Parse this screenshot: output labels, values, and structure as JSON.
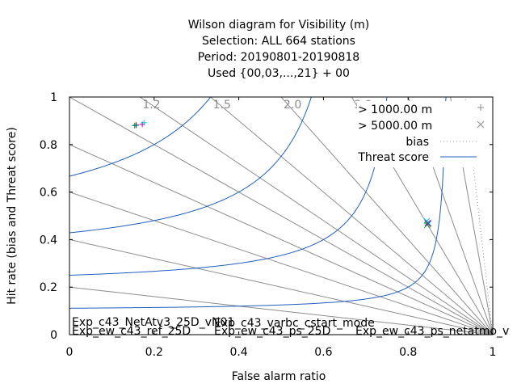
{
  "chart_data": {
    "type": "scatter",
    "title_lines": [
      "Wilson diagram  for Visibility (m)",
      "Selection: ALL    664 stations",
      "Period: 20190801-20190818",
      "Used {00,03,...,21} + 00"
    ],
    "xlabel": "False alarm ratio",
    "ylabel": "Hit rate (bias and Threat score)",
    "xlim": [
      0,
      1
    ],
    "ylim": [
      0,
      1
    ],
    "x_ticks": [
      "0",
      "0.2",
      "0.4",
      "0.6",
      "0.8",
      "1"
    ],
    "y_ticks": [
      "0",
      "0.2",
      "0.4",
      "0.6",
      "0.8",
      "1"
    ],
    "bias_values": [
      1.2,
      1.5,
      2.0,
      3.0
    ],
    "bias_labels": [
      "1.2",
      "1.5",
      "2.0",
      "3.0"
    ],
    "threat_score_values": [
      0.1,
      0.2,
      0.3,
      0.4,
      0.5,
      0.6,
      0.7,
      0.8,
      0.9
    ],
    "legend": {
      "placement": "top-right",
      "entries": [
        {
          "label": "> 1000.00 m",
          "symbol": "+"
        },
        {
          "label": "> 5000.00 m",
          "symbol": "×"
        },
        {
          "label": "bias",
          "style": "dotted"
        },
        {
          "label": "Threat score",
          "style": "line"
        }
      ]
    },
    "experiments": [
      {
        "name": "Exp_c43_NetAtv3_25D_vN01",
        "color": "#cc00cc"
      },
      {
        "name": "Exp_ew_c43_ref_25D",
        "color": "#ff0000"
      },
      {
        "name": "Exp_c43_varbc_cstart_mode",
        "color": "#00cccc"
      },
      {
        "name": "Exp_ew_c43_ps_25D",
        "color": "#00aa00"
      },
      {
        "name": "Exp_ew_c43_ps_netatmo_v",
        "color": "#0070d0"
      }
    ],
    "series": [
      {
        "name": "> 1000.00 m",
        "marker": "plus",
        "points": [
          {
            "experiment": "Exp_c43_NetAtv3_25D_vN01",
            "x": 0.172,
            "y": 0.885
          },
          {
            "experiment": "Exp_ew_c43_ref_25D",
            "x": 0.158,
            "y": 0.882
          },
          {
            "experiment": "Exp_c43_varbc_cstart_mode",
            "x": 0.176,
            "y": 0.892
          },
          {
            "experiment": "Exp_ew_c43_ps_25D",
            "x": 0.154,
            "y": 0.88
          },
          {
            "experiment": "Exp_ew_c43_ps_netatmo_v",
            "x": 0.157,
            "y": 0.881
          }
        ]
      },
      {
        "name": "> 5000.00 m",
        "marker": "cross",
        "points": [
          {
            "experiment": "Exp_c43_NetAtv3_25D_vN01",
            "x": 0.846,
            "y": 0.47
          },
          {
            "experiment": "Exp_ew_c43_ref_25D",
            "x": 0.847,
            "y": 0.466
          },
          {
            "experiment": "Exp_c43_varbc_cstart_mode",
            "x": 0.844,
            "y": 0.478
          },
          {
            "experiment": "Exp_ew_c43_ps_25D",
            "x": 0.845,
            "y": 0.462
          },
          {
            "experiment": "Exp_ew_c43_ps_netatmo_v",
            "x": 0.848,
            "y": 0.468
          }
        ]
      }
    ],
    "colors": {
      "bias_line": "#8c8c8c",
      "threat_line": "#1f5fbf",
      "axis": "#000000"
    }
  }
}
